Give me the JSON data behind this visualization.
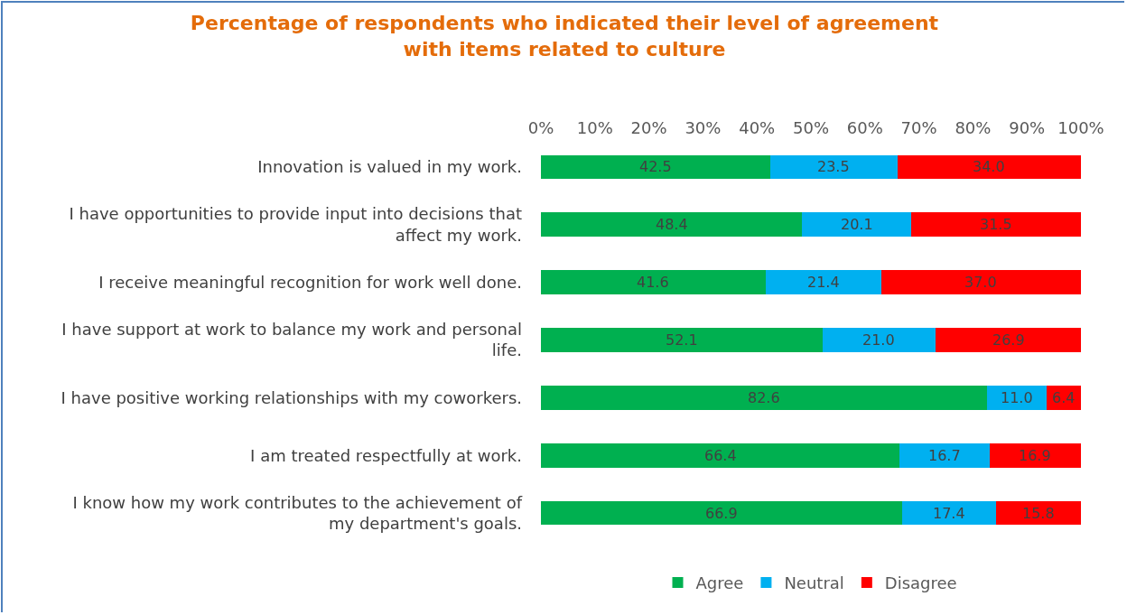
{
  "chart_data": {
    "type": "bar",
    "orientation": "horizontal",
    "stacked": true,
    "title": "Percentage of respondents who indicated their level of agreement\nwith items related to culture",
    "categories": [
      "Innovation is valued in my work.",
      "I have opportunities to provide input into decisions that\naffect my work.",
      "I receive meaningful recognition for work well done.",
      "I have support at work to balance my work and personal\nlife.",
      "I have positive working relationships with my coworkers.",
      "I am treated respectfully at work.",
      "I know how my work contributes to the achievement of\nmy department's goals."
    ],
    "series": [
      {
        "name": "Agree",
        "color": "#00b050",
        "values": [
          42.5,
          48.4,
          41.6,
          52.1,
          82.6,
          66.4,
          66.9
        ],
        "value_labels": [
          "42.5",
          "48.4",
          "41.6",
          "52.1",
          "82.6",
          "66.4",
          "66.9"
        ]
      },
      {
        "name": "Neutral",
        "color": "#00b0f0",
        "values": [
          23.5,
          20.1,
          21.4,
          21.0,
          11.0,
          16.7,
          17.4
        ],
        "value_labels": [
          "23.5",
          "20.1",
          "21.4",
          "21.0",
          "11.0",
          "16.7",
          "17.4"
        ]
      },
      {
        "name": "Disagree",
        "color": "#ff0000",
        "values": [
          34.0,
          31.5,
          37.0,
          26.9,
          6.4,
          16.9,
          15.8
        ],
        "value_labels": [
          "34.0",
          "31.5",
          "37.0",
          "26.9",
          "6.4",
          "16.9",
          "15.8"
        ]
      }
    ],
    "xlim": [
      0,
      100
    ],
    "xticks": [
      {
        "value": 0,
        "label": "0%"
      },
      {
        "value": 10,
        "label": "10%"
      },
      {
        "value": 20,
        "label": "20%"
      },
      {
        "value": 30,
        "label": "30%"
      },
      {
        "value": 40,
        "label": "40%"
      },
      {
        "value": 50,
        "label": "50%"
      },
      {
        "value": 60,
        "label": "60%"
      },
      {
        "value": 70,
        "label": "70%"
      },
      {
        "value": 80,
        "label": "80%"
      },
      {
        "value": 90,
        "label": "90%"
      },
      {
        "value": 100,
        "label": "100%"
      }
    ],
    "grid": false,
    "legend": "bottom"
  }
}
